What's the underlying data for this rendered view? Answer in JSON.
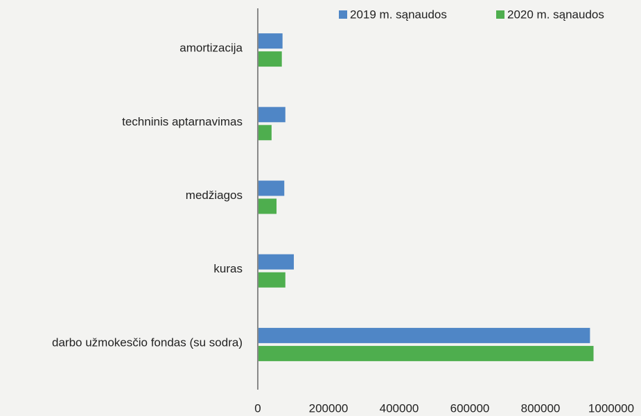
{
  "chart_data": {
    "type": "hbar",
    "categories": [
      "amortizacija",
      "techninis aptarnavimas",
      "medžiagos",
      "kuras",
      "darbo užmokesčio fondas (su sodra)"
    ],
    "series": [
      {
        "name": "2019 m. sąnaudos",
        "color": "#4f86c6",
        "values": [
          70000,
          78000,
          75000,
          102000,
          940000
        ]
      },
      {
        "name": "2020 m. sąnaudos",
        "color": "#4eae4e",
        "values": [
          68000,
          39000,
          53000,
          78000,
          950000
        ]
      }
    ],
    "xlim": [
      0,
      1000000
    ],
    "xticks": [
      0,
      200000,
      400000,
      600000,
      800000,
      1000000
    ],
    "grid": false,
    "legend": "top-right"
  }
}
